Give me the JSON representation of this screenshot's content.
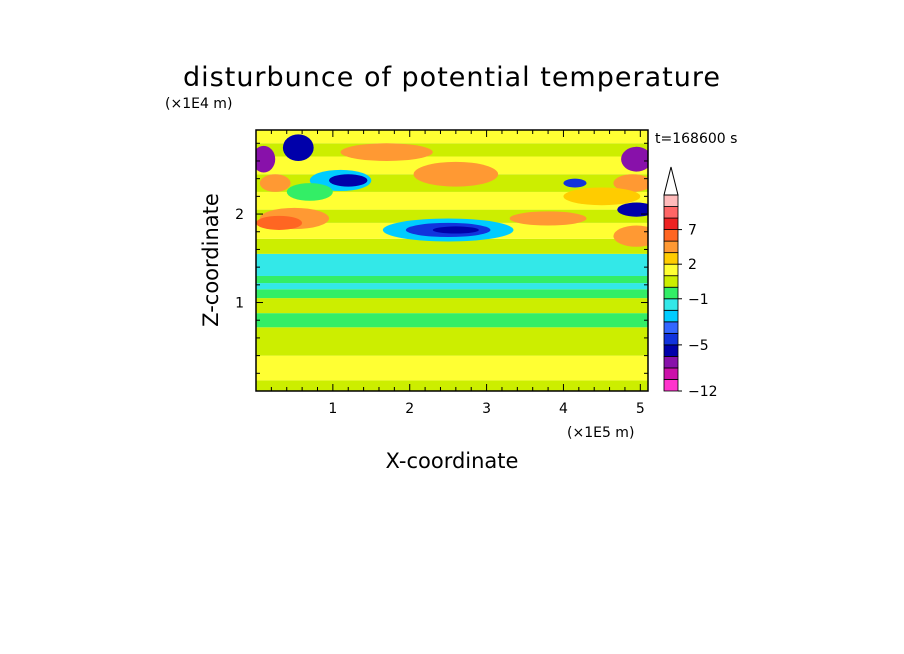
{
  "chart_data": {
    "type": "heatmap",
    "title": "disturbunce of potential temperature",
    "xlabel": "X-coordinate",
    "ylabel": "Z-coordinate",
    "x_unit": "(×1E5 m)",
    "y_unit": "(×1E4 m)",
    "time_label": "t=168600 s",
    "xlim": [
      0,
      5.1
    ],
    "ylim": [
      0,
      2.95
    ],
    "x_ticks": [
      "1",
      "2",
      "3",
      "4",
      "5"
    ],
    "y_ticks": [
      "1",
      "2"
    ],
    "colorbar": {
      "levels": [
        -12,
        -10,
        -8,
        -6,
        -5,
        -4,
        -3,
        -2,
        -1,
        0,
        1,
        2,
        3,
        5,
        7,
        9,
        11
      ],
      "colors": [
        "#ff33cc",
        "#cc11aa",
        "#8811aa",
        "#0000aa",
        "#1133dd",
        "#3366ff",
        "#00ccff",
        "#33e8e8",
        "#33ee66",
        "#ccee00",
        "#ffff33",
        "#ffcc00",
        "#ff9933",
        "#ff6622",
        "#ee2222",
        "#ff6666",
        "#ffbbbb"
      ],
      "labels": [
        {
          "text": "7",
          "value": 7
        },
        {
          "text": "2",
          "value": 2
        },
        {
          "text": "−1",
          "value": -1
        },
        {
          "text": "−5",
          "value": -5
        },
        {
          "text": "−12",
          "value": -12
        }
      ]
    },
    "bands": [
      {
        "z0": 0.0,
        "z1": 0.12,
        "value": 0.4
      },
      {
        "z0": 0.12,
        "z1": 0.4,
        "value": 1.3
      },
      {
        "z0": 0.4,
        "z1": 0.72,
        "value": 0.7
      },
      {
        "z0": 0.72,
        "z1": 0.88,
        "value": -0.3
      },
      {
        "z0": 0.88,
        "z1": 1.05,
        "value": 0.5
      },
      {
        "z0": 1.05,
        "z1": 1.15,
        "value": -0.4
      },
      {
        "z0": 1.15,
        "z1": 1.22,
        "value": -1.2
      },
      {
        "z0": 1.22,
        "z1": 1.3,
        "value": -0.3
      },
      {
        "z0": 1.3,
        "z1": 1.55,
        "value": -1.2
      },
      {
        "z0": 1.55,
        "z1": 1.72,
        "value": 0.5
      },
      {
        "z0": 1.72,
        "z1": 1.9,
        "value": 1.3
      },
      {
        "z0": 1.9,
        "z1": 2.05,
        "value": 0.6
      },
      {
        "z0": 2.05,
        "z1": 2.25,
        "value": 1.6
      },
      {
        "z0": 2.25,
        "z1": 2.45,
        "value": 0.8
      },
      {
        "z0": 2.45,
        "z1": 2.65,
        "value": 1.8
      },
      {
        "z0": 2.65,
        "z1": 2.8,
        "value": 0.6
      },
      {
        "z0": 2.8,
        "z1": 2.95,
        "value": 1.6
      }
    ],
    "features": [
      {
        "x": 2.5,
        "z": 1.82,
        "rx": 0.85,
        "rz": 0.13,
        "value": -2.5
      },
      {
        "x": 2.5,
        "z": 1.82,
        "rx": 0.55,
        "rz": 0.08,
        "value": -4.5
      },
      {
        "x": 2.6,
        "z": 1.82,
        "rx": 0.3,
        "rz": 0.04,
        "value": -5.5
      },
      {
        "x": 2.6,
        "z": 2.45,
        "rx": 0.55,
        "rz": 0.14,
        "value": 3.5
      },
      {
        "x": 1.1,
        "z": 2.38,
        "rx": 0.4,
        "rz": 0.12,
        "value": -2.5
      },
      {
        "x": 1.2,
        "z": 2.38,
        "rx": 0.25,
        "rz": 0.07,
        "value": -5.5
      },
      {
        "x": 0.55,
        "z": 2.75,
        "rx": 0.2,
        "rz": 0.15,
        "value": -5.5
      },
      {
        "x": 0.1,
        "z": 2.62,
        "rx": 0.15,
        "rz": 0.15,
        "value": -6.5
      },
      {
        "x": 0.25,
        "z": 2.35,
        "rx": 0.2,
        "rz": 0.1,
        "value": 3.5
      },
      {
        "x": 0.5,
        "z": 1.95,
        "rx": 0.45,
        "rz": 0.12,
        "value": 4.0
      },
      {
        "x": 0.3,
        "z": 1.9,
        "rx": 0.3,
        "rz": 0.08,
        "value": 6.0
      },
      {
        "x": 4.95,
        "z": 2.62,
        "rx": 0.2,
        "rz": 0.14,
        "value": -6.5
      },
      {
        "x": 4.95,
        "z": 2.05,
        "rx": 0.25,
        "rz": 0.08,
        "value": -5.5
      },
      {
        "x": 4.95,
        "z": 1.75,
        "rx": 0.3,
        "rz": 0.12,
        "value": 4.5
      },
      {
        "x": 4.9,
        "z": 2.35,
        "rx": 0.25,
        "rz": 0.1,
        "value": 4.0
      },
      {
        "x": 4.15,
        "z": 2.35,
        "rx": 0.15,
        "rz": 0.05,
        "value": -5.0
      },
      {
        "x": 1.7,
        "z": 2.7,
        "rx": 0.6,
        "rz": 0.1,
        "value": 3.5
      },
      {
        "x": 3.8,
        "z": 1.95,
        "rx": 0.5,
        "rz": 0.08,
        "value": 3.5
      },
      {
        "x": 4.5,
        "z": 2.2,
        "rx": 0.5,
        "rz": 0.1,
        "value": 2.5
      },
      {
        "x": 0.7,
        "z": 2.25,
        "rx": 0.3,
        "rz": 0.1,
        "value": -0.5
      }
    ]
  }
}
